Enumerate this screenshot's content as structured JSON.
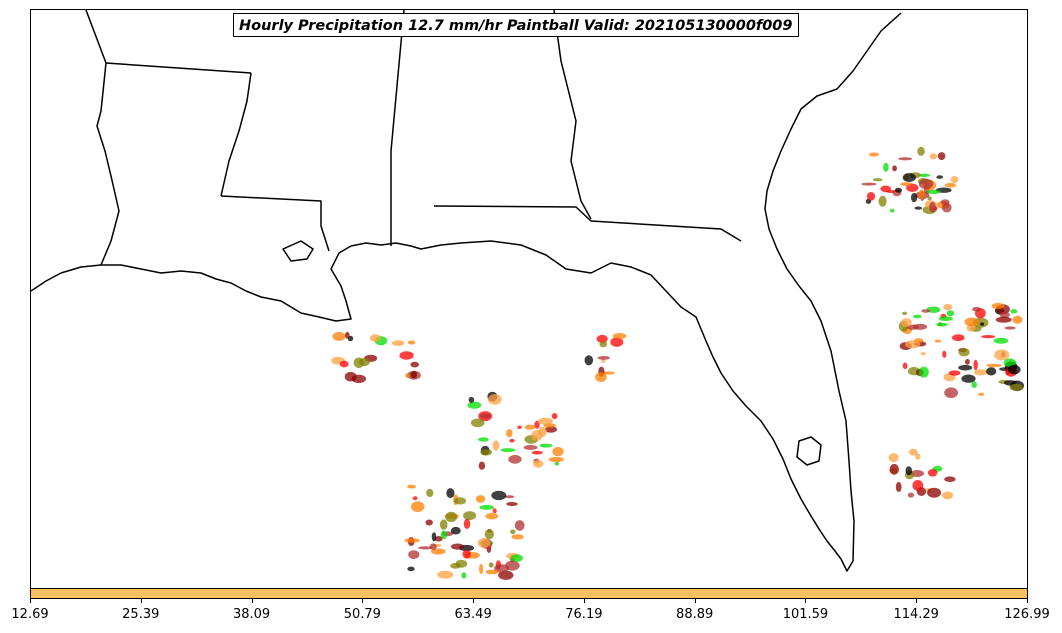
{
  "title": "Hourly Precipitation 12.7 mm/hr Paintball Valid: 202105130000f009",
  "colorbar": {
    "color": "#ffc060",
    "ticks": [
      "12.69",
      "25.39",
      "38.09",
      "50.79",
      "63.49",
      "76.19",
      "88.89",
      "101.59",
      "114.29",
      "126.99"
    ]
  },
  "colors": {
    "member_palette": [
      "#ff0000",
      "#ff7f00",
      "#00dd00",
      "#8b0000",
      "#808000",
      "#000000",
      "#ffa040",
      "#b03030"
    ]
  }
}
